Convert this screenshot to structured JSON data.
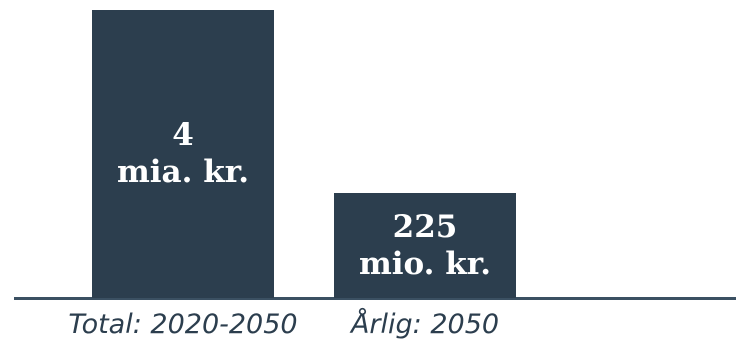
{
  "chart_data": {
    "type": "bar",
    "categories": [
      "Total: 2020-2050",
      "Årlig: 2050"
    ],
    "series": [
      {
        "values": [
          4,
          0.225
        ],
        "unit": "mia. kr."
      }
    ],
    "data_labels": [
      [
        "4",
        "mia. kr."
      ],
      [
        "225",
        "mio. kr."
      ]
    ],
    "title": "",
    "xlabel": "",
    "ylabel": "",
    "ylim": [
      0,
      4.5
    ],
    "grid": false,
    "legend": "none",
    "colors": {
      "bar": "#2c3e4e",
      "label_text": "#ffffff",
      "axis": "#3b5062",
      "category_text": "#2c3e4e"
    }
  }
}
